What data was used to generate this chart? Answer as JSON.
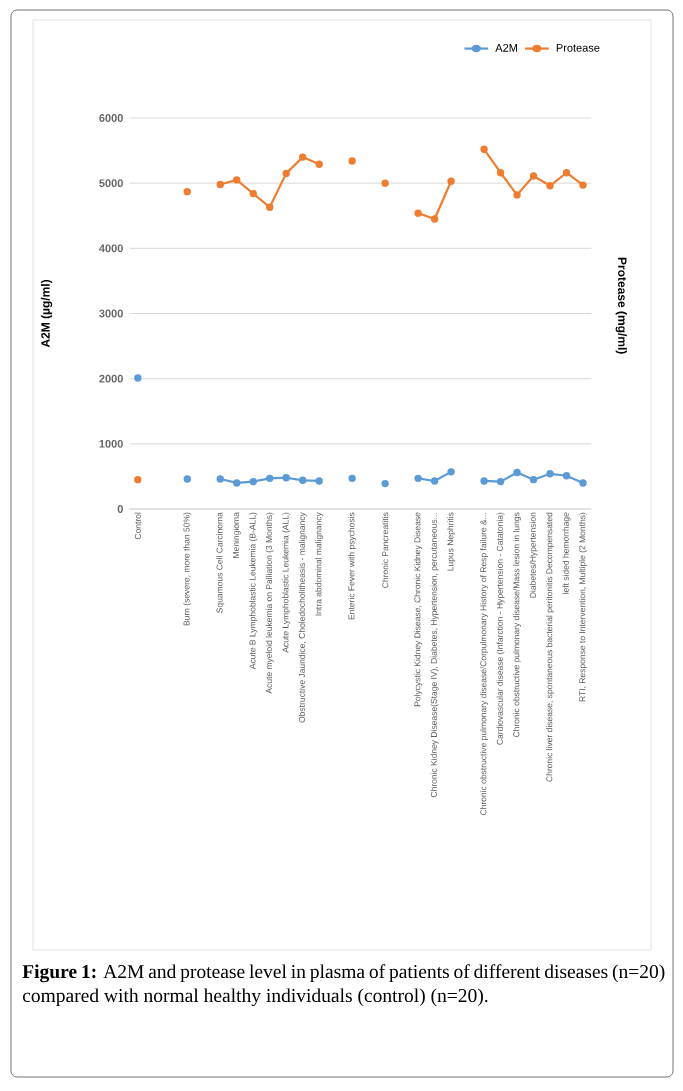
{
  "chart_data": {
    "type": "line",
    "categories": [
      "Control",
      null,
      null,
      "Burn (severe, more than 50%)",
      null,
      "Squamous Cell Carcinoma",
      "Meningioma",
      "Acute B Lymphoblastic Leukemia (B-ALL)",
      "Acute myeloid leukemia on Palliation (3 Months)",
      "Acute Lymphoblastic Leukemia (ALL)",
      "Obstructive Jaundice, Choledocholitheasis - malignancy",
      "Intra abdominal malignancy",
      null,
      "Enteric Fever with psychosis",
      null,
      "Chronic Pancreatitis",
      null,
      "Polycystic Kidney Disease, Chronic Kidney Disease",
      "Chronic Kidney Disease(Stage IV), Diabetes, Hypertension, percutaneous...",
      "Lupus Nephritis",
      null,
      "Chronic obstructive pulmonary disease/Corpulmonary History of Resp failure &...",
      "Cardiovascular disease (Infarction - Hypertension - Catatonia)",
      "Chronic obstructive pulmonary disease/Mass lesion in lungs",
      "Diabetes/Hypertension",
      "Chronic liver disease, spontaneous bacterial peritonitis Decompensated",
      "left  sided hemorrhage",
      "RTI, Response to Intervention, Multiple (2 Months)"
    ],
    "series": [
      {
        "name": "A2M",
        "color": "#5b9bd5",
        "values": [
          2010,
          null,
          null,
          460,
          null,
          460,
          400,
          420,
          470,
          480,
          440,
          430,
          null,
          470,
          null,
          390,
          null,
          470,
          430,
          570,
          null,
          430,
          420,
          560,
          450,
          540,
          510,
          400
        ]
      },
      {
        "name": "Protease",
        "color": "#ed7d31",
        "values": [
          450,
          null,
          null,
          4870,
          null,
          4980,
          5050,
          4840,
          4630,
          5150,
          5400,
          5290,
          null,
          5340,
          null,
          5000,
          null,
          4540,
          4450,
          5030,
          null,
          5520,
          5160,
          4820,
          5110,
          4960,
          5160,
          4970
        ]
      }
    ],
    "ylim": [
      0,
      6000
    ],
    "yticks": [
      0,
      1000,
      2000,
      3000,
      4000,
      5000,
      6000
    ],
    "ylabel": "A2M (µg/ml)",
    "y2label": "Protease (mg/ml)",
    "grid": "y",
    "legend": "top right",
    "marker": "circle",
    "line_style": "solid",
    "annotations": [
      "**Figure 1:** A2M and protease level in plasma of patients of different diseases (n=20) compared with normal healthy individuals (control) (n=20)."
    ]
  }
}
